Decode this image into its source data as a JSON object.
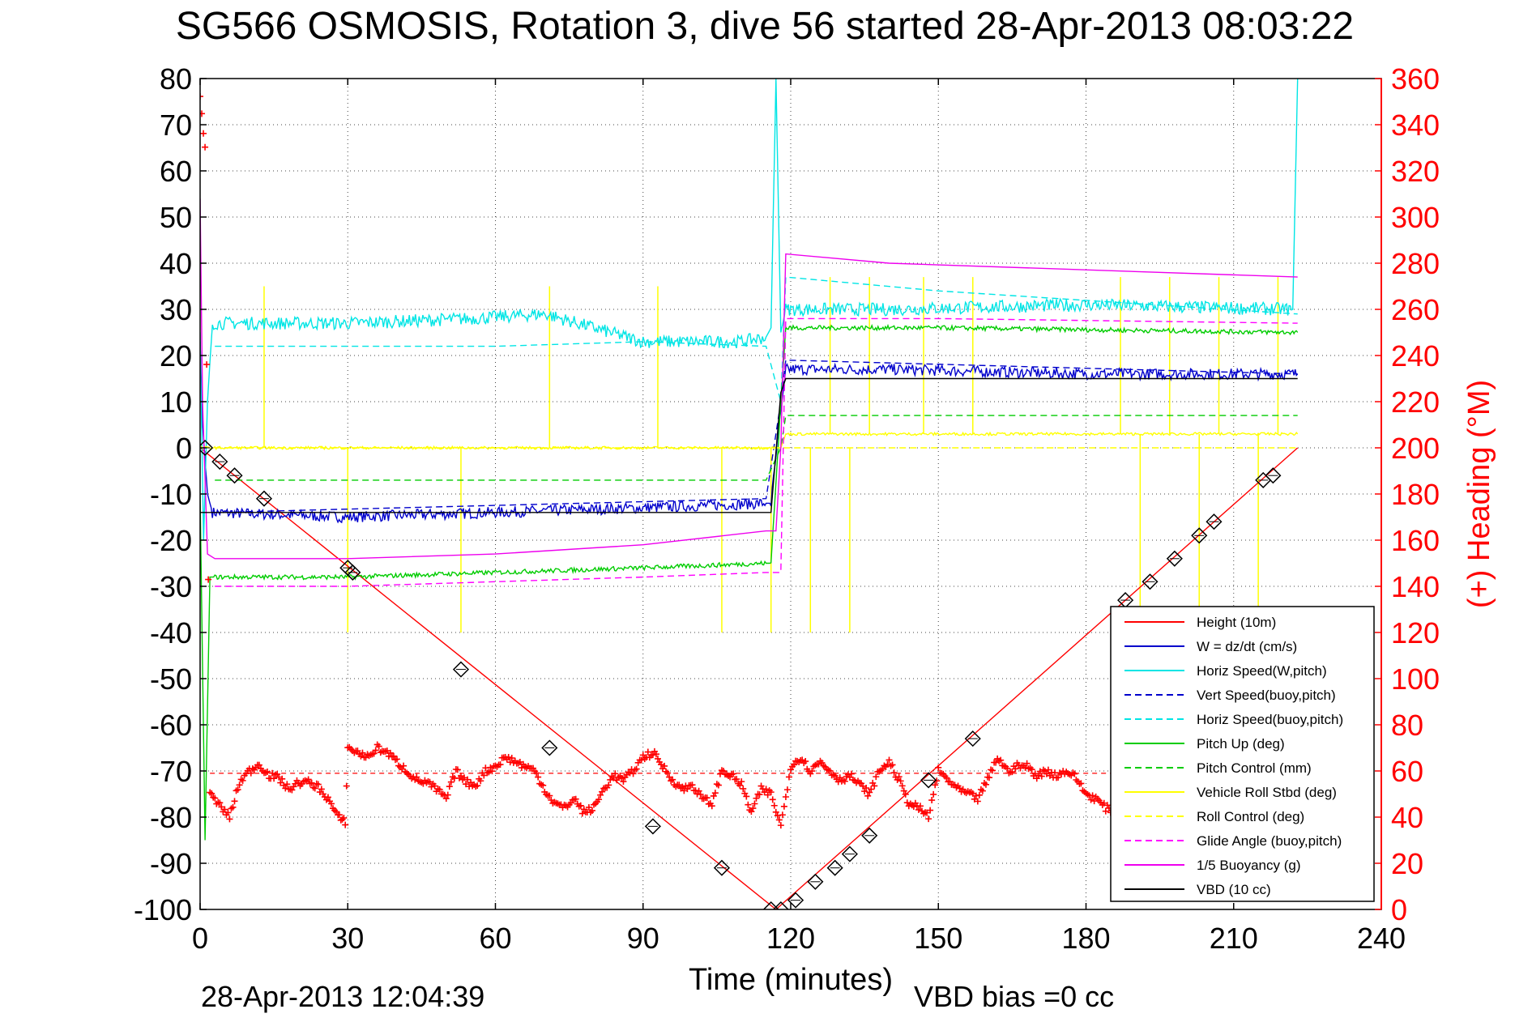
{
  "chart_data": {
    "type": "line",
    "title": "SG566 OSMOSIS, Rotation 3, dive 56 started 28-Apr-2013 08:03:22",
    "xlabel": "Time (minutes)",
    "ylabel": "",
    "y2label": "(+) Heading (°M)",
    "xlim": [
      0,
      240
    ],
    "ylim": [
      -100,
      80
    ],
    "y2lim": [
      0,
      360
    ],
    "xticks": [
      "0",
      "30",
      "60",
      "90",
      "120",
      "150",
      "180",
      "210",
      "240"
    ],
    "yticks": [
      "80",
      "70",
      "60",
      "50",
      "40",
      "30",
      "20",
      "10",
      "0",
      "-10",
      "-20",
      "-30",
      "-40",
      "-50",
      "-60",
      "-70",
      "-80",
      "-90",
      "-100"
    ],
    "y2ticks": [
      "360",
      "340",
      "320",
      "300",
      "280",
      "260",
      "240",
      "220",
      "200",
      "180",
      "160",
      "140",
      "120",
      "100",
      "80",
      "60",
      "40",
      "20",
      "0"
    ],
    "grid": true,
    "legend_position": "bottom-right",
    "footer_timestamp": "28-Apr-2013 12:04:39",
    "footer_note": "VBD bias =0 cc",
    "colors": {
      "height": "#ff0000",
      "w": "#0000cc",
      "horiz_speed": "#00e5e5",
      "pitch": "#00cc00",
      "roll": "#ffff00",
      "glide": "#ff00ff",
      "buoyancy": "#ee00ee",
      "vbd": "#000000",
      "heading": "#ff0000"
    },
    "series": [
      {
        "name": "Height (10m)",
        "color": "#ff0000",
        "style": "solid",
        "x": [
          0,
          117,
          223
        ],
        "y": [
          0,
          -100,
          0
        ]
      },
      {
        "name": "W = dz/dt (cm/s)",
        "color": "#0000cc",
        "style": "solid",
        "noise": 1.2,
        "x": [
          0,
          0.5,
          1.5,
          2.5,
          30,
          60,
          90,
          115,
          116,
          118,
          119,
          140,
          180,
          223
        ],
        "y": [
          23,
          5,
          -10,
          -14,
          -15,
          -14,
          -13,
          -12,
          -12,
          8,
          17,
          17,
          16,
          16
        ]
      },
      {
        "name": "Horiz Speed(W,pitch)",
        "color": "#00e5e5",
        "style": "solid",
        "noise": 1.4,
        "x": [
          0,
          0.7,
          1.5,
          2.5,
          30,
          55,
          70,
          90,
          110,
          115,
          116,
          117,
          118,
          119,
          140,
          180,
          222,
          223
        ],
        "y": [
          25,
          -20,
          10,
          27,
          27,
          28,
          29,
          23,
          23,
          24,
          26,
          80,
          25,
          30,
          30,
          31,
          30,
          80
        ]
      },
      {
        "name": "Vert Speed(buoy,pitch)",
        "color": "#0000cc",
        "style": "dashed",
        "x": [
          3,
          115,
          118,
          119,
          223
        ],
        "y": [
          -14,
          -11,
          10,
          19,
          16
        ]
      },
      {
        "name": "Horiz Speed(buoy,pitch)",
        "color": "#00e5e5",
        "style": "dashed",
        "x": [
          3,
          30,
          60,
          90,
          115,
          118,
          119,
          150,
          223
        ],
        "y": [
          22,
          22,
          22,
          23,
          22,
          10,
          37,
          34,
          29
        ]
      },
      {
        "name": "Pitch Up (deg)",
        "color": "#00cc00",
        "style": "solid",
        "noise": 0.5,
        "x": [
          0,
          1,
          2,
          3,
          30,
          60,
          90,
          115,
          116,
          118,
          119,
          150,
          223
        ],
        "y": [
          -10,
          -85,
          -28,
          -28,
          -28,
          -27,
          -26,
          -25,
          -25,
          10,
          26,
          26,
          25
        ]
      },
      {
        "name": "Pitch Control (mm)",
        "color": "#00cc00",
        "style": "dashed",
        "x": [
          3,
          115,
          118,
          119,
          223
        ],
        "y": [
          -7,
          -7,
          0,
          7,
          7
        ]
      },
      {
        "name": "Vehicle Roll Stbd (deg)",
        "color": "#ffff00",
        "style": "solid",
        "noise": 0.3,
        "x": [
          0,
          3,
          115,
          117,
          118,
          119,
          223
        ],
        "y": [
          0,
          0,
          0,
          0,
          0,
          3,
          3
        ]
      },
      {
        "name": "Roll Control (deg)",
        "color": "#ffff00",
        "style": "dashed",
        "x": [
          3,
          115,
          118,
          119,
          223
        ],
        "y": [
          0,
          0,
          0,
          0,
          0
        ]
      },
      {
        "name": "Glide Angle (buoy,pitch)",
        "color": "#ff00ff",
        "style": "dashed",
        "x": [
          3,
          30,
          60,
          90,
          115,
          118,
          119,
          150,
          223
        ],
        "y": [
          -30,
          -30,
          -29,
          -28,
          -27,
          -27,
          28,
          28,
          27
        ]
      },
      {
        "name": "1/5 Buoyancy (g)",
        "color": "#ee00ee",
        "style": "solid",
        "x": [
          0,
          0.5,
          1.5,
          3,
          30,
          60,
          90,
          115,
          116,
          117,
          118,
          119,
          140,
          223
        ],
        "y": [
          54,
          10,
          -23,
          -24,
          -24,
          -23,
          -21,
          -18,
          -18,
          -18,
          0,
          42,
          40,
          37
        ]
      },
      {
        "name": "VBD (10 cc)",
        "color": "#000000",
        "style": "solid",
        "x": [
          0,
          115,
          116,
          118,
          119,
          223
        ],
        "y": [
          -14,
          -14,
          -14,
          12,
          15,
          15
        ]
      }
    ],
    "spikes": [
      {
        "x": 13,
        "y1": 0,
        "y2": 35,
        "color": "#ffff00"
      },
      {
        "x": 30,
        "y1": 0,
        "y2": -40,
        "color": "#ffff00"
      },
      {
        "x": 53,
        "y1": 0,
        "y2": -40,
        "color": "#ffff00"
      },
      {
        "x": 71,
        "y1": 0,
        "y2": 35,
        "color": "#ffff00"
      },
      {
        "x": 93,
        "y1": 0,
        "y2": 35,
        "color": "#ffff00"
      },
      {
        "x": 106,
        "y1": 0,
        "y2": -40,
        "color": "#ffff00"
      },
      {
        "x": 116,
        "y1": 0,
        "y2": -40,
        "color": "#ffff00"
      },
      {
        "x": 124,
        "y1": 0,
        "y2": -40,
        "color": "#ffff00"
      },
      {
        "x": 128,
        "y1": 3,
        "y2": 37,
        "color": "#ffff00"
      },
      {
        "x": 132,
        "y1": 0,
        "y2": -40,
        "color": "#ffff00"
      },
      {
        "x": 136,
        "y1": 3,
        "y2": 37,
        "color": "#ffff00"
      },
      {
        "x": 147,
        "y1": 3,
        "y2": 37,
        "color": "#ffff00"
      },
      {
        "x": 157,
        "y1": 3,
        "y2": 37,
        "color": "#ffff00"
      },
      {
        "x": 187,
        "y1": 3,
        "y2": 37,
        "color": "#ffff00"
      },
      {
        "x": 191,
        "y1": 3,
        "y2": -40,
        "color": "#ffff00"
      },
      {
        "x": 197,
        "y1": 3,
        "y2": 37,
        "color": "#ffff00"
      },
      {
        "x": 203,
        "y1": 3,
        "y2": -40,
        "color": "#ffff00"
      },
      {
        "x": 207,
        "y1": 3,
        "y2": 37,
        "color": "#ffff00"
      },
      {
        "x": 215,
        "y1": 3,
        "y2": -40,
        "color": "#ffff00"
      },
      {
        "x": 219,
        "y1": 3,
        "y2": 37,
        "color": "#ffff00"
      }
    ],
    "heading_series": {
      "name": "Heading",
      "color": "#ff0000",
      "x": [
        0,
        1,
        2,
        4,
        6,
        8,
        10,
        12,
        14,
        16,
        18,
        20,
        22,
        24,
        26,
        28,
        29.5,
        30,
        32,
        34,
        36,
        38,
        40,
        42,
        44,
        46,
        48,
        50,
        52,
        54,
        56,
        58,
        60,
        62,
        64,
        66,
        68,
        70,
        72,
        74,
        76,
        78,
        80,
        82,
        84,
        86,
        88,
        90,
        92,
        94,
        96,
        98,
        100,
        102,
        104,
        106,
        108,
        110,
        112,
        114,
        116,
        118,
        120,
        122,
        124,
        126,
        128,
        130,
        132,
        134,
        136,
        138,
        140,
        142,
        144,
        146,
        148,
        150,
        152,
        154,
        156,
        158,
        160,
        162,
        164,
        166,
        168,
        170,
        172,
        174,
        176,
        178,
        180,
        182,
        184,
        186
      ],
      "y": [
        352,
        330,
        50,
        45,
        40,
        55,
        60,
        63,
        58,
        57,
        52,
        55,
        55,
        53,
        48,
        40,
        38,
        70,
        68,
        66,
        70,
        68,
        64,
        60,
        56,
        55,
        52,
        48,
        60,
        55,
        54,
        60,
        62,
        66,
        64,
        62,
        60,
        52,
        46,
        44,
        48,
        42,
        44,
        52,
        58,
        56,
        60,
        66,
        68,
        62,
        56,
        52,
        54,
        48,
        46,
        60,
        58,
        54,
        42,
        52,
        50,
        36,
        62,
        66,
        60,
        64,
        60,
        56,
        58,
        54,
        50,
        60,
        64,
        56,
        46,
        44,
        40,
        60,
        56,
        52,
        50,
        48,
        56,
        66,
        60,
        62,
        62,
        58,
        60,
        58,
        60,
        57,
        50,
        48,
        44,
        42
      ]
    },
    "heading_ref": 59,
    "depth_markers": [
      {
        "x": 1,
        "y": 0
      },
      {
        "x": 4,
        "y": -3
      },
      {
        "x": 7,
        "y": -6
      },
      {
        "x": 13,
        "y": -11
      },
      {
        "x": 30,
        "y": -26
      },
      {
        "x": 31,
        "y": -27
      },
      {
        "x": 53,
        "y": -48
      },
      {
        "x": 71,
        "y": -65
      },
      {
        "x": 92,
        "y": -82
      },
      {
        "x": 106,
        "y": -91
      },
      {
        "x": 116,
        "y": -100
      },
      {
        "x": 118,
        "y": -100
      },
      {
        "x": 121,
        "y": -98
      },
      {
        "x": 125,
        "y": -94
      },
      {
        "x": 129,
        "y": -91
      },
      {
        "x": 132,
        "y": -88
      },
      {
        "x": 136,
        "y": -84
      },
      {
        "x": 148,
        "y": -72
      },
      {
        "x": 157,
        "y": -63
      },
      {
        "x": 188,
        "y": -33
      },
      {
        "x": 193,
        "y": -29
      },
      {
        "x": 198,
        "y": -24
      },
      {
        "x": 203,
        "y": -19
      },
      {
        "x": 206,
        "y": -16
      },
      {
        "x": 216,
        "y": -7
      },
      {
        "x": 218,
        "y": -6
      }
    ]
  }
}
